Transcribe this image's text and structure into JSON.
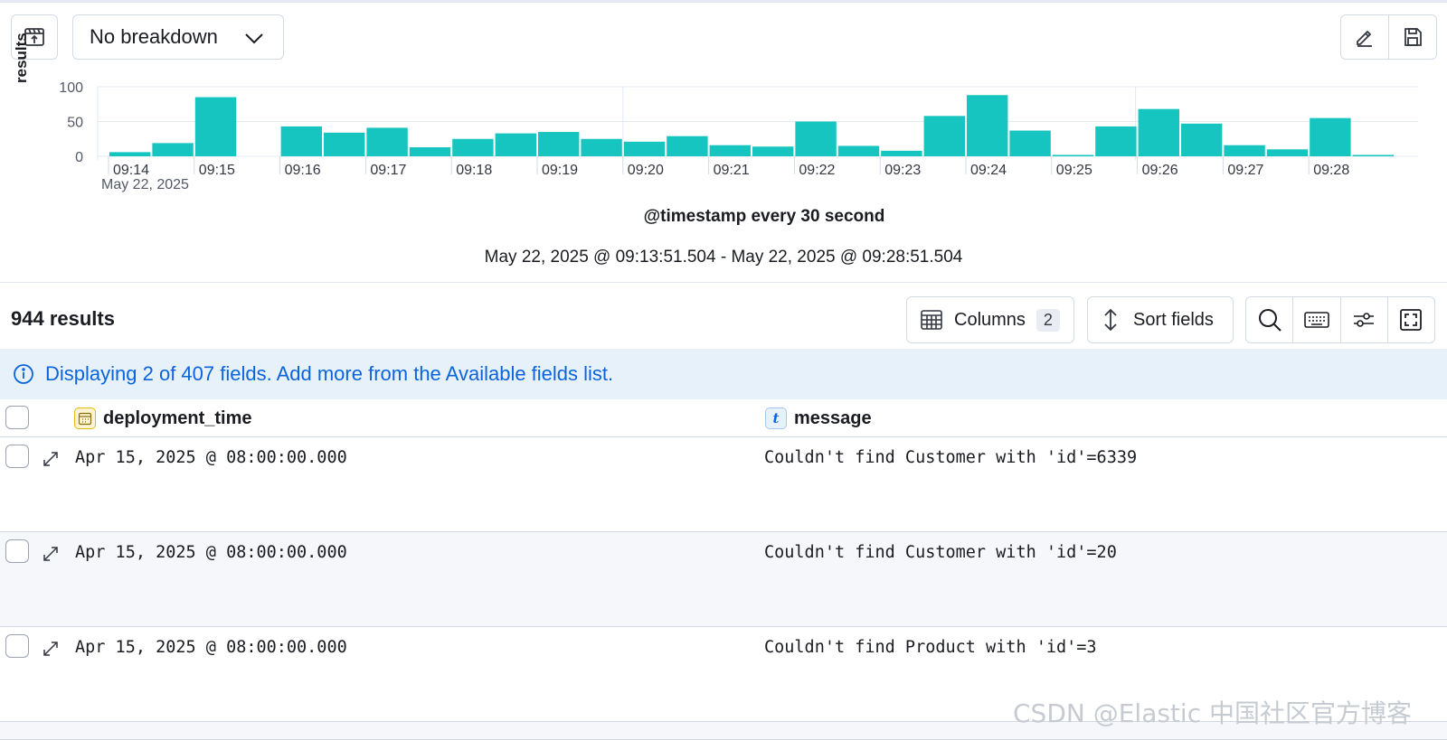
{
  "toolbar": {
    "breakdown_label": "No breakdown"
  },
  "chart_data": {
    "type": "bar",
    "ylabel": "results",
    "xlabel": "@timestamp every 30 second",
    "ylim": [
      0,
      100
    ],
    "y_ticks": [
      "100",
      "50",
      "0"
    ],
    "x_ticks": [
      "09:14",
      "09:15",
      "09:16",
      "09:17",
      "09:18",
      "09:19",
      "09:20",
      "09:21",
      "09:22",
      "09:23",
      "09:24",
      "09:25",
      "09:26",
      "09:27",
      "09:28"
    ],
    "x_sub_label": "May 22, 2025",
    "values": [
      6,
      19,
      85,
      0,
      43,
      34,
      41,
      13,
      25,
      33,
      35,
      25,
      21,
      29,
      16,
      14,
      50,
      15,
      8,
      58,
      88,
      37,
      2,
      43,
      68,
      47,
      16,
      10,
      55,
      2
    ],
    "color": "#16c5c0",
    "grid": true
  },
  "time_range": "May 22, 2025 @ 09:13:51.504 - May 22, 2025 @ 09:28:51.504",
  "results": {
    "count_label": "944 results",
    "columns_label": "Columns",
    "columns_count": "2",
    "sort_label": "Sort fields"
  },
  "callout": {
    "text": "Displaying 2 of 407 fields. Add more from the Available fields list."
  },
  "table": {
    "headers": [
      "deployment_time",
      "message"
    ],
    "rows": [
      [
        "Apr 15, 2025 @ 08:00:00.000",
        "Couldn't find Customer with 'id'=6339"
      ],
      [
        "Apr 15, 2025 @ 08:00:00.000",
        "Couldn't find Customer with 'id'=20"
      ],
      [
        "Apr 15, 2025 @ 08:00:00.000",
        "Couldn't find Product with 'id'=3"
      ]
    ]
  },
  "watermark": "CSDN @Elastic 中国社区官方博客"
}
